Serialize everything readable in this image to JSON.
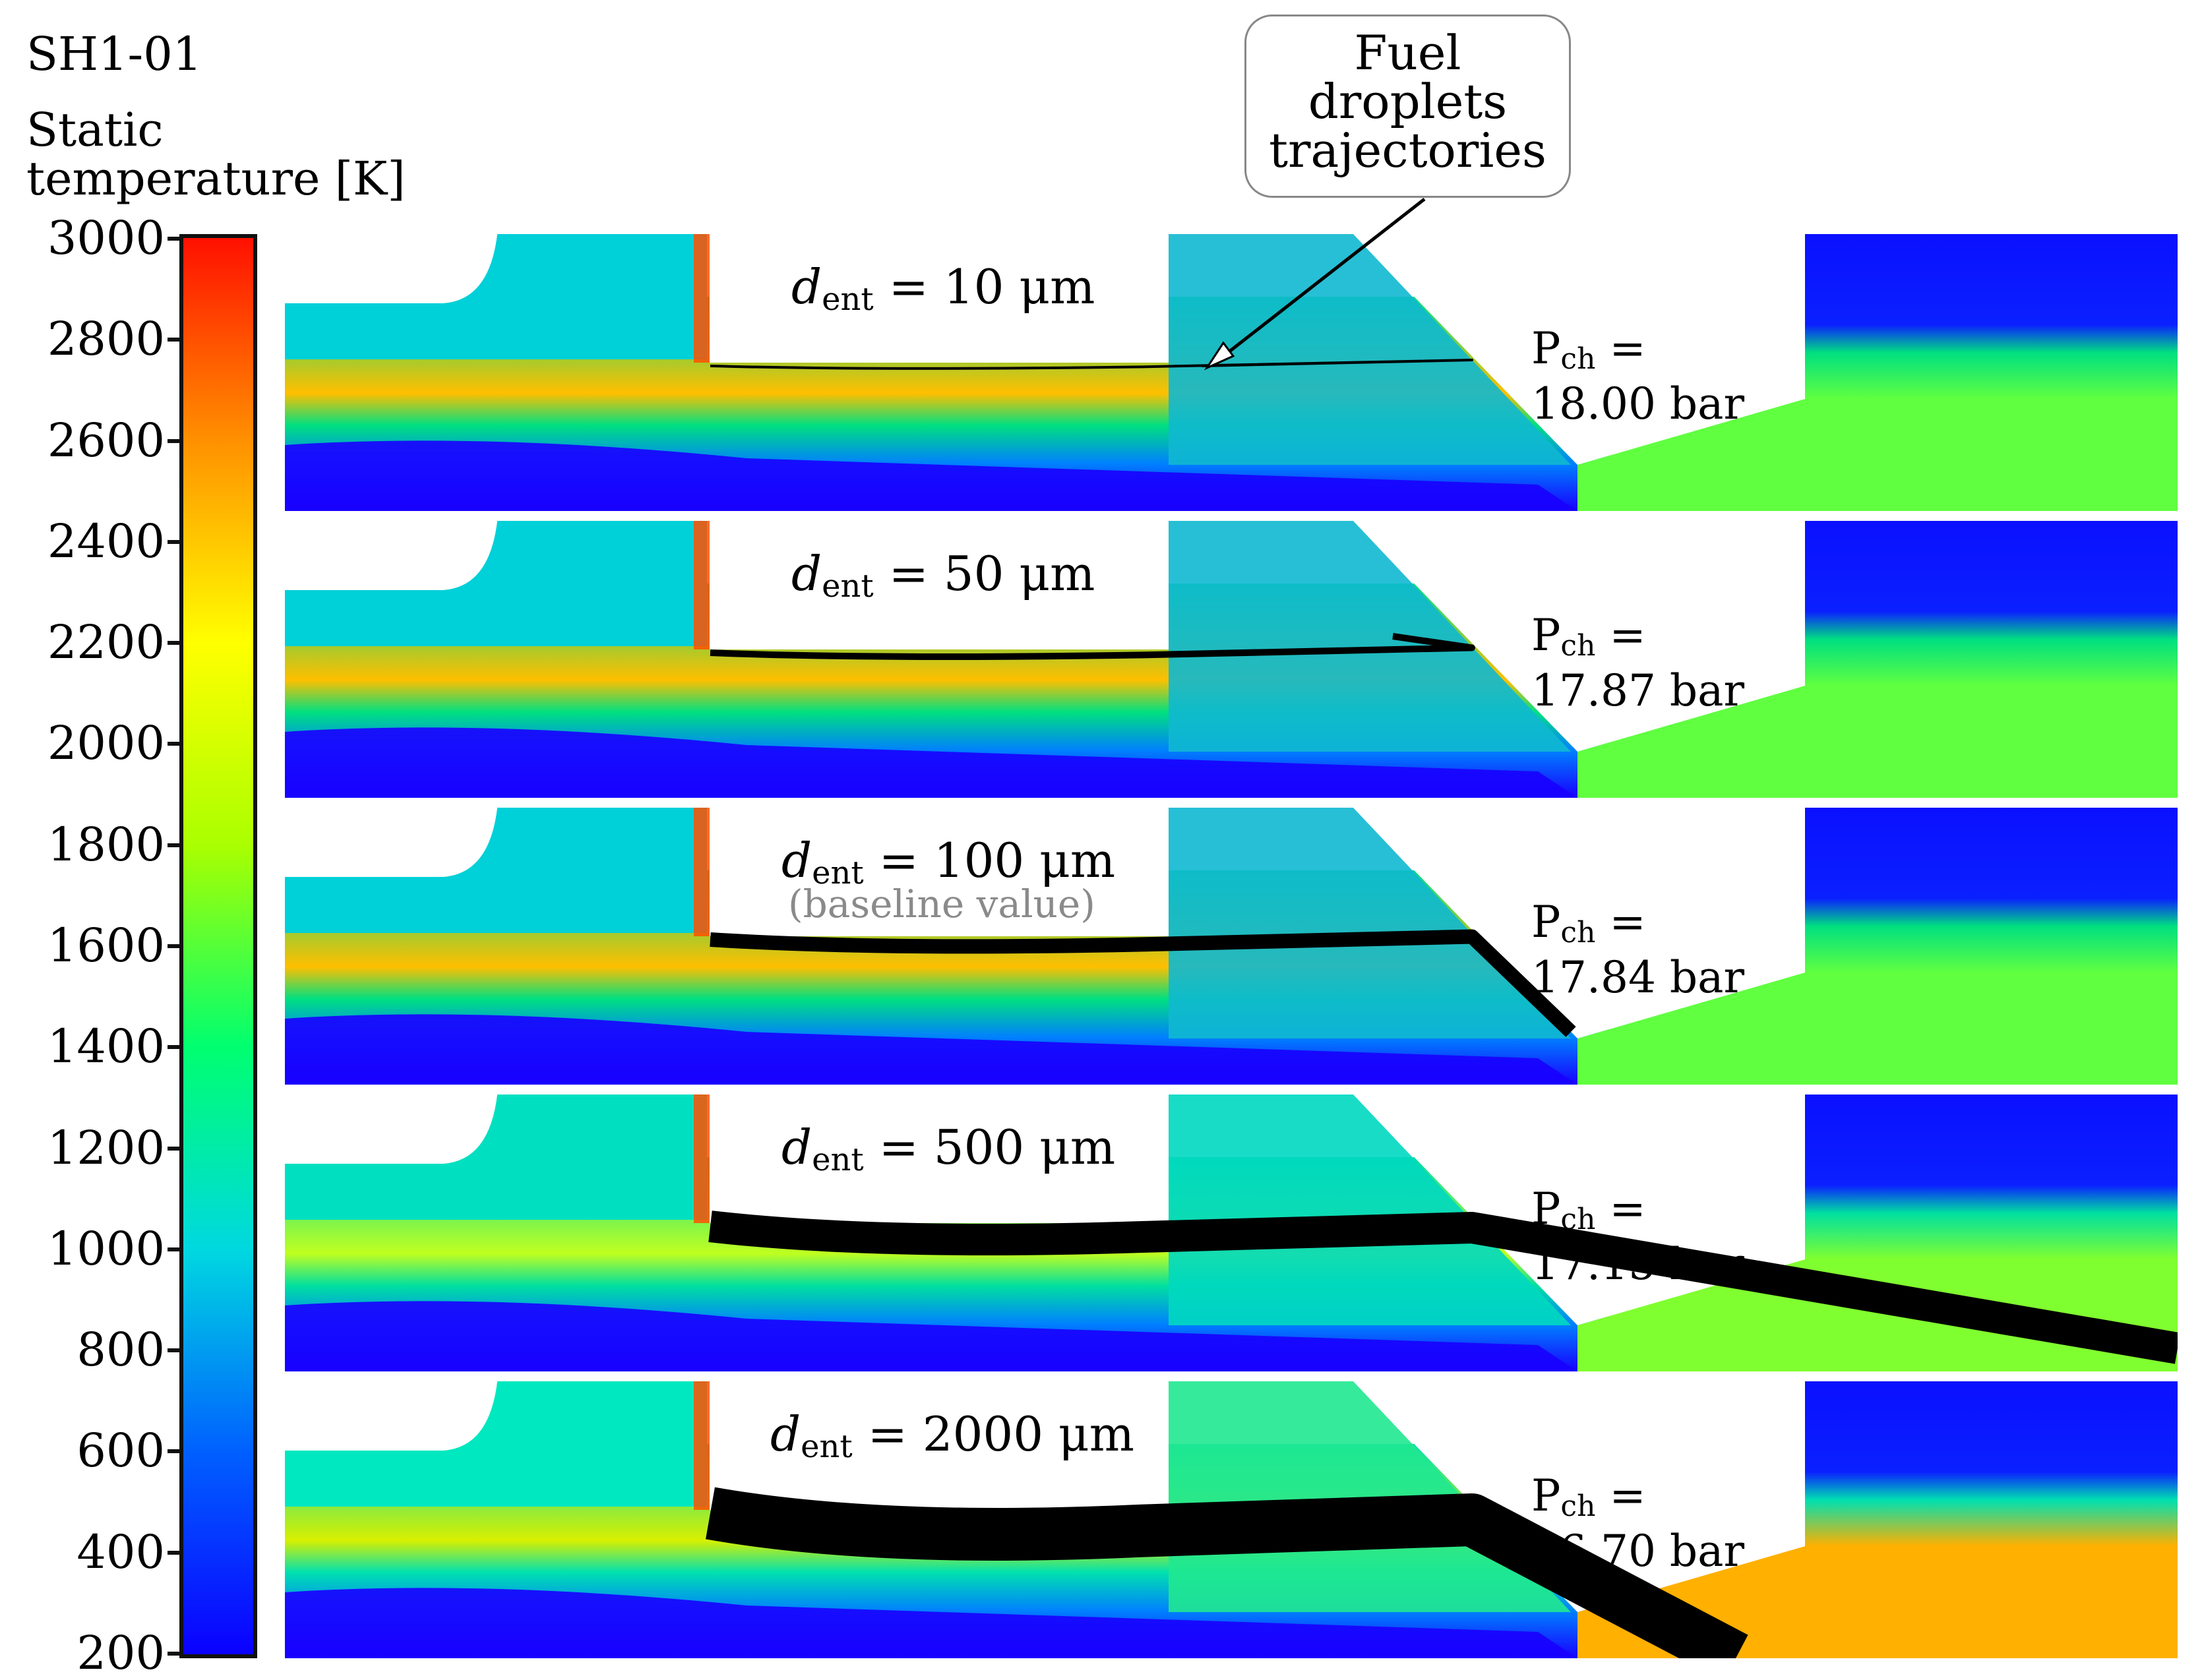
{
  "case_id": "SH1-01",
  "colorbar": {
    "title_line1": "Static",
    "title_line2": "temperature [K]",
    "ticks": [
      "3000",
      "2800",
      "2600",
      "2400",
      "2200",
      "2000",
      "1800",
      "1600",
      "1400",
      "1200",
      "1000",
      "800",
      "600",
      "400",
      "200"
    ],
    "min": 200,
    "max": 3000,
    "colors": [
      "#0a00ff",
      "#0060ff",
      "#00d8e0",
      "#00ff70",
      "#aaff00",
      "#ffff00",
      "#ff9000",
      "#ff1000"
    ]
  },
  "callout": {
    "line1": "Fuel",
    "line2": "droplets",
    "line3": "trajectories"
  },
  "panels": [
    {
      "d_sym": "d",
      "d_sub": "ent",
      "d_value": "= 10 μm",
      "note": "",
      "p_sym": "P",
      "p_sub": "ch",
      "p_eq": "=",
      "p_value": "18.00 bar"
    },
    {
      "d_sym": "d",
      "d_sub": "ent",
      "d_value": "= 50 μm",
      "note": "",
      "p_sym": "P",
      "p_sub": "ch",
      "p_eq": "=",
      "p_value": "17.87 bar"
    },
    {
      "d_sym": "d",
      "d_sub": "ent",
      "d_value": "= 100 μm",
      "note": "(baseline value)",
      "p_sym": "P",
      "p_sub": "ch",
      "p_eq": "=",
      "p_value": "17.84 bar"
    },
    {
      "d_sym": "d",
      "d_sub": "ent",
      "d_value": "= 500 μm",
      "note": "",
      "p_sym": "P",
      "p_sub": "ch",
      "p_eq": "=",
      "p_value": "17.15 bar"
    },
    {
      "d_sym": "d",
      "d_sub": "ent",
      "d_value": "= 2000 μm",
      "note": "",
      "p_sym": "P",
      "p_sub": "ch",
      "p_eq": "=",
      "p_value": "16.70 bar"
    }
  ]
}
